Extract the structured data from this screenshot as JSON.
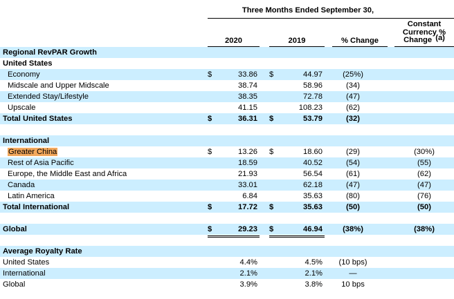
{
  "header": {
    "period": "Three Months Ended September 30,",
    "col_2020": "2020",
    "col_2019": "2019",
    "col_pct": "% Change",
    "cc_line1": "Constant",
    "cc_line2": "Currency %",
    "cc_line3": "Change",
    "cc_footnote": "(a)"
  },
  "sections": {
    "revpar_title": "Regional RevPAR Growth",
    "us_title": "United States",
    "intl_title": "International",
    "royalty_title": "Average Royalty Rate"
  },
  "us_rows": [
    {
      "label": "Economy",
      "cur1": "$",
      "v2020": "33.86",
      "cur2": "$",
      "v2019": "44.97",
      "pct": "(25%)",
      "cc": ""
    },
    {
      "label": "Midscale and Upper Midscale",
      "cur1": "",
      "v2020": "38.74",
      "cur2": "",
      "v2019": "58.96",
      "pct": "(34)",
      "cc": ""
    },
    {
      "label": "Extended Stay/Lifestyle",
      "cur1": "",
      "v2020": "38.35",
      "cur2": "",
      "v2019": "72.78",
      "pct": "(47)",
      "cc": ""
    },
    {
      "label": "Upscale",
      "cur1": "",
      "v2020": "41.15",
      "cur2": "",
      "v2019": "108.23",
      "pct": "(62)",
      "cc": ""
    }
  ],
  "us_total": {
    "label": "Total United States",
    "cur1": "$",
    "v2020": "36.31",
    "cur2": "$",
    "v2019": "53.79",
    "pct": "(32)",
    "cc": ""
  },
  "intl_rows": [
    {
      "label": "Greater China",
      "cur1": "$",
      "v2020": "13.26",
      "cur2": "$",
      "v2019": "18.60",
      "pct": "(29)",
      "cc": "(30%)"
    },
    {
      "label": "Rest of Asia Pacific",
      "cur1": "",
      "v2020": "18.59",
      "cur2": "",
      "v2019": "40.52",
      "pct": "(54)",
      "cc": "(55)"
    },
    {
      "label": "Europe, the Middle East and Africa",
      "cur1": "",
      "v2020": "21.93",
      "cur2": "",
      "v2019": "56.54",
      "pct": "(61)",
      "cc": "(62)"
    },
    {
      "label": "Canada",
      "cur1": "",
      "v2020": "33.01",
      "cur2": "",
      "v2019": "62.18",
      "pct": "(47)",
      "cc": "(47)"
    },
    {
      "label": "Latin America",
      "cur1": "",
      "v2020": "6.84",
      "cur2": "",
      "v2019": "35.63",
      "pct": "(80)",
      "cc": "(76)"
    }
  ],
  "intl_total": {
    "label": "Total International",
    "cur1": "$",
    "v2020": "17.72",
    "cur2": "$",
    "v2019": "35.63",
    "pct": "(50)",
    "cc": "(50)"
  },
  "global": {
    "label": "Global",
    "cur1": "$",
    "v2020": "29.23",
    "cur2": "$",
    "v2019": "46.94",
    "pct": "(38%)",
    "cc": "(38%)"
  },
  "royalty_rows": [
    {
      "label": "United States",
      "v2020": "4.4%",
      "v2019": "4.5%",
      "pct": "(10 bps)"
    },
    {
      "label": "International",
      "v2020": "2.1%",
      "v2019": "2.1%",
      "pct": "—"
    },
    {
      "label": "Global",
      "v2020": "3.9%",
      "v2019": "3.8%",
      "pct": "10 bps"
    }
  ],
  "colors": {
    "shade": "#cceeff",
    "highlight": "#f2a85c"
  }
}
